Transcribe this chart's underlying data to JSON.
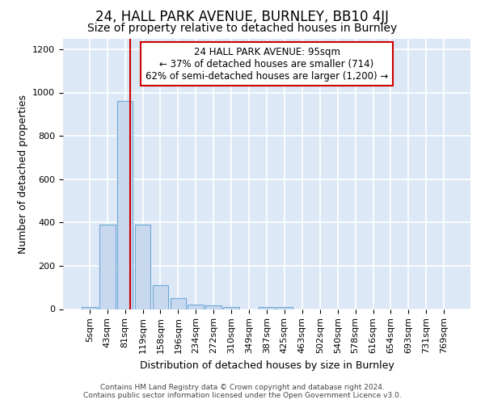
{
  "title": "24, HALL PARK AVENUE, BURNLEY, BB10 4JJ",
  "subtitle": "Size of property relative to detached houses in Burnley",
  "xlabel": "Distribution of detached houses by size in Burnley",
  "ylabel": "Number of detached properties",
  "footer_line1": "Contains HM Land Registry data © Crown copyright and database right 2024.",
  "footer_line2": "Contains public sector information licensed under the Open Government Licence v3.0.",
  "bin_labels": [
    "5sqm",
    "43sqm",
    "81sqm",
    "119sqm",
    "158sqm",
    "196sqm",
    "234sqm",
    "272sqm",
    "310sqm",
    "349sqm",
    "387sqm",
    "425sqm",
    "463sqm",
    "502sqm",
    "540sqm",
    "578sqm",
    "616sqm",
    "654sqm",
    "693sqm",
    "731sqm",
    "769sqm"
  ],
  "bar_values": [
    10,
    390,
    960,
    390,
    110,
    50,
    20,
    15,
    10,
    0,
    10,
    8,
    0,
    0,
    0,
    0,
    0,
    0,
    0,
    0,
    0
  ],
  "bar_color": "#c8d8ee",
  "bar_edgecolor": "#6ea8d8",
  "bar_linewidth": 0.8,
  "vline_x": 2.3,
  "vline_color": "#cc0000",
  "vline_linewidth": 1.5,
  "annotation_text": "24 HALL PARK AVENUE: 95sqm\n← 37% of detached houses are smaller (714)\n62% of semi-detached houses are larger (1,200) →",
  "annotation_box_edgecolor": "#cc0000",
  "annotation_box_facecolor": "#ffffff",
  "ylim": [
    0,
    1250
  ],
  "yticks": [
    0,
    200,
    400,
    600,
    800,
    1000,
    1200
  ],
  "plot_bg_color": "#dce8f5",
  "fig_bg_color": "#ffffff",
  "grid_color": "#ffffff",
  "title_fontsize": 12,
  "subtitle_fontsize": 10,
  "axis_label_fontsize": 9,
  "tick_fontsize": 8,
  "annotation_fontsize": 8.5,
  "footer_fontsize": 6.5
}
